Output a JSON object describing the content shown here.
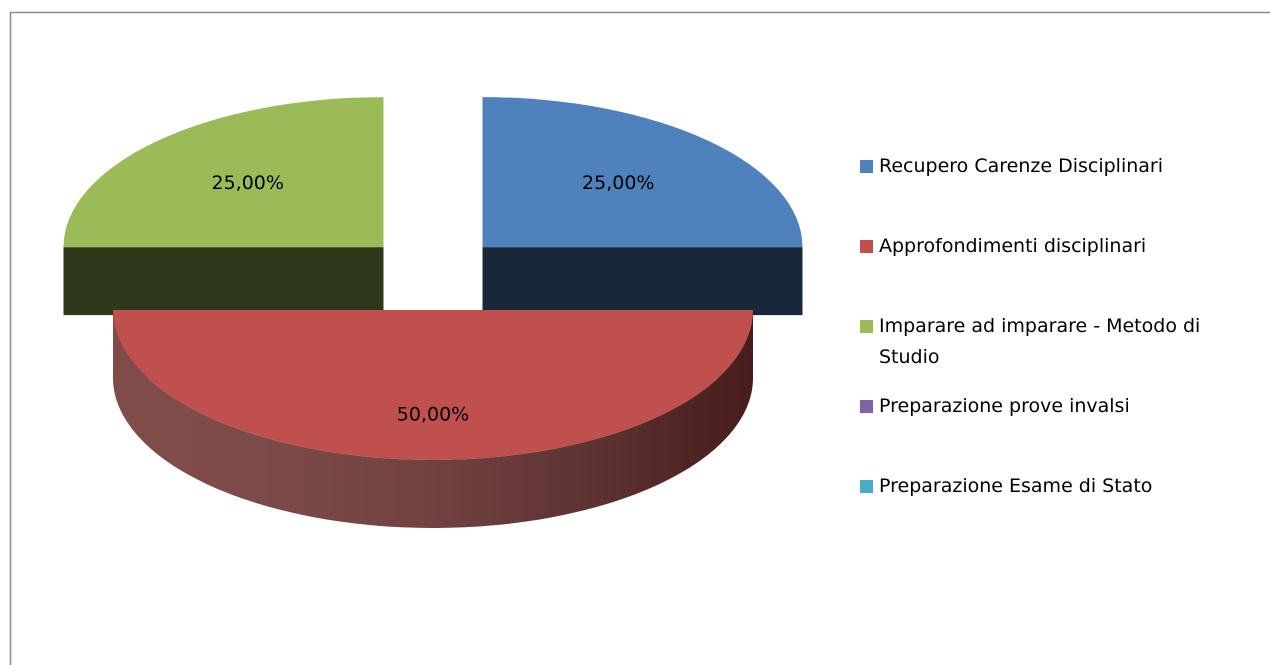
{
  "chart_data": {
    "type": "pie3d",
    "categories": [
      "Recupero Carenze Disciplinari",
      "Approfondimenti disciplinari",
      "Imparare ad imparare  - Metodo di Studio",
      "Preparazione prove invalsi",
      "Preparazione Esame  di Stato"
    ],
    "values": [
      25,
      50,
      25,
      0,
      0
    ],
    "value_labels": [
      "25,00%",
      "50,00%",
      "25,00%",
      null,
      null
    ],
    "colors": [
      "#4f81bd",
      "#c0504d",
      "#9bbb59",
      "#8064a2",
      "#4bacc6"
    ],
    "legend": "right"
  }
}
